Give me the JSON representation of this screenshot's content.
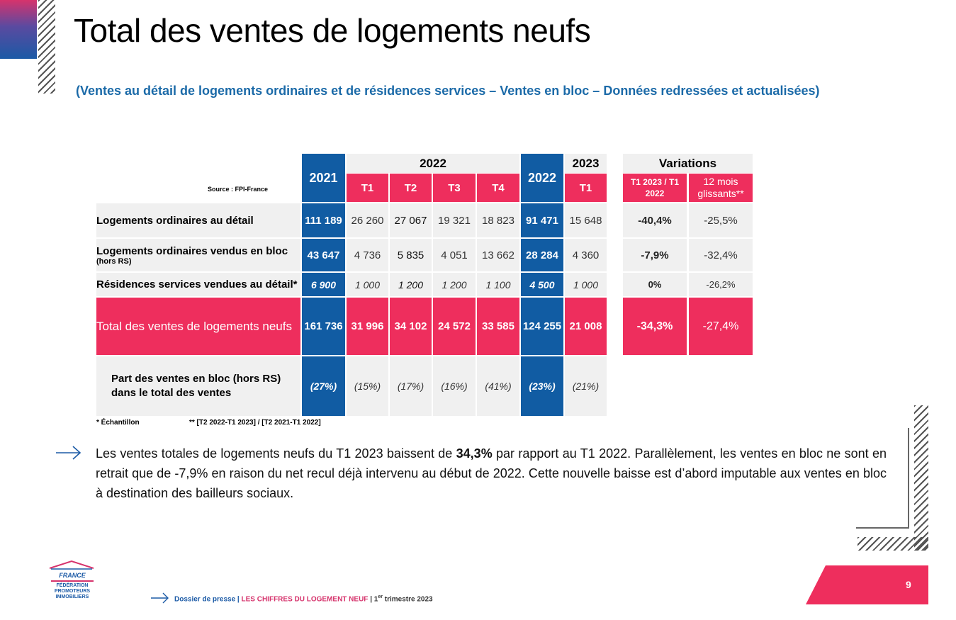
{
  "title": "Total des ventes de logements neufs",
  "subtitle": "(Ventes au détail de logements ordinaires et de résidences services – Ventes en bloc – Données redressées et actualisées)",
  "source": "Source : FPI-France",
  "table": {
    "header": {
      "y2021": "2021",
      "y2022_group": "2022",
      "quarters_2022": [
        "T1",
        "T2",
        "T3",
        "T4"
      ],
      "y2022": "2022",
      "y2023": "2023",
      "q_2023": "T1",
      "variations": "Variations",
      "var_col1": "T1 2023 / T1 2022",
      "var_col2": "12 mois glissants**"
    },
    "rows": [
      {
        "label": "Logements ordinaires au détail",
        "sublabel": "",
        "y2021": "111 189",
        "q2022": [
          "26 260",
          "27 067",
          "19 321",
          "18 823"
        ],
        "y2022": "91 471",
        "q2023": "15 648",
        "var1": "-40,4%",
        "var2": "-25,5%"
      },
      {
        "label": "Logements ordinaires vendus en bloc",
        "sublabel": "(hors RS)",
        "y2021": "43 647",
        "q2022": [
          "4 736",
          "5 835",
          "4 051",
          "13 662"
        ],
        "y2022": "28 284",
        "q2023": "4 360",
        "var1": "-7,9%",
        "var2": "-32,4%"
      },
      {
        "label": "Résidences services vendues au détail*",
        "sublabel": "",
        "y2021": "6 900",
        "q2022": [
          "1 000",
          "1 200",
          "1 200",
          "1 100"
        ],
        "y2022": "4 500",
        "q2023": "1 000",
        "var1": "0%",
        "var2": "-26,2%"
      }
    ],
    "total": {
      "label": "Total des ventes de logements neufs",
      "y2021": "161 736",
      "q2022": [
        "31 996",
        "34 102",
        "24 572",
        "33 585"
      ],
      "y2022": "124 255",
      "q2023": "21 008",
      "var1": "-34,3%",
      "var2": "-27,4%"
    },
    "share": {
      "label": "Part des ventes en bloc (hors RS) dans le total des ventes",
      "y2021": "(27%)",
      "q2022": [
        "(15%)",
        "(17%)",
        "(16%)",
        "(41%)"
      ],
      "y2022": "(23%)",
      "q2023": "(21%)"
    }
  },
  "footnotes": {
    "sample": "* Échantillon",
    "period": "** [T2 2022-T1 2023] / [T2 2021-T1 2022]"
  },
  "paragraph": {
    "part1": "Les ventes totales de logements neufs du T1 2023 baissent de ",
    "bold": "34,3%",
    "part2": " par rapport au T1 2022. Parallèlement, les ventes en bloc ne sont en retrait que de -7,9% en raison du net recul déjà intervenu au début de 2022. Cette nouvelle baisse est d’abord imputable aux ventes en bloc à destination des bailleurs sociaux."
  },
  "logo": {
    "france": "FRANCE",
    "line1": "FÉDÉRATION",
    "line2": "PROMOTEURS",
    "line3": "IMMOBILIERS"
  },
  "footer": {
    "part1": "Dossier de presse | ",
    "part2": "LES CHIFFRES DU LOGEMENT NEUF",
    "part3": " | 1",
    "sup": "er",
    "part4": " trimestre 2023"
  },
  "page_number": "9",
  "colors": {
    "blue": "#115ca3",
    "pink": "#ee2e5d",
    "grey": "#f0f0f0",
    "accent_blue": "#1b6aa8"
  }
}
